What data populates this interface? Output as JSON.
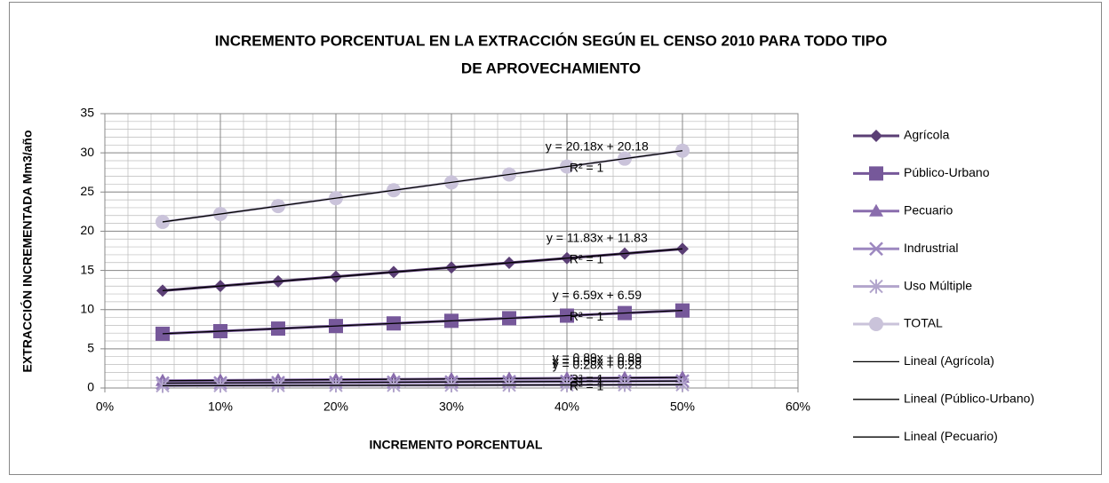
{
  "chart_data": {
    "type": "line",
    "title": [
      "INCREMENTO PORCENTUAL EN LA EXTRACCIÓN SEGÚN EL CENSO 2010 PARA TODO TIPO",
      "DE APROVECHAMIENTO"
    ],
    "x_label": "INCREMENTO PORCENTUAL",
    "y_label": "EXTRACCIÓN INCREMENTADA  Mm3/año",
    "x": [
      5,
      10,
      15,
      20,
      25,
      30,
      35,
      40,
      45,
      50
    ],
    "xlim": [
      0,
      60
    ],
    "xticks": [
      {
        "value": 0,
        "label": "0%"
      },
      {
        "value": 10,
        "label": "10%"
      },
      {
        "value": 20,
        "label": "20%"
      },
      {
        "value": 30,
        "label": "30%"
      },
      {
        "value": 40,
        "label": "40%"
      },
      {
        "value": 50,
        "label": "50%"
      },
      {
        "value": 60,
        "label": "60%"
      }
    ],
    "ylim": [
      0,
      35
    ],
    "yticks": [
      0,
      5,
      10,
      15,
      20,
      25,
      30,
      35
    ],
    "grid": true,
    "minor_grid": {
      "x": 2,
      "y": 1
    },
    "legend": "right",
    "series": [
      {
        "name": "Agrícola",
        "color": "#5b3f75",
        "marker": "diamond",
        "values": [
          12.42,
          13.01,
          13.6,
          14.2,
          14.79,
          15.38,
          15.97,
          16.56,
          17.15,
          17.75
        ],
        "trendline": {
          "name": "Lineal (Agrícola)",
          "equation": "y = 11.83x + 11.83",
          "r_squared": "R² = 1"
        }
      },
      {
        "name": "Público-Urbano",
        "color": "#76589a",
        "marker": "square",
        "values": [
          6.92,
          7.25,
          7.58,
          7.91,
          8.24,
          8.57,
          8.9,
          9.23,
          9.56,
          9.89
        ],
        "trendline": {
          "name": "Lineal (Público-Urbano)",
          "equation": "y = 6.59x + 6.59",
          "r_squared": "R² = 1"
        }
      },
      {
        "name": "Pecuario",
        "color": "#8a6dad",
        "marker": "triangle",
        "values": [
          0.93,
          0.98,
          1.02,
          1.07,
          1.11,
          1.16,
          1.2,
          1.25,
          1.29,
          1.34
        ],
        "trendline": {
          "name": "Lineal (Pecuario)",
          "equation": "y = 0.89x + 0.89",
          "r_squared": "R² = 1"
        }
      },
      {
        "name": "Indrustrial",
        "color": "#9d88c0",
        "marker": "x",
        "values": [
          0.62,
          0.65,
          0.68,
          0.71,
          0.74,
          0.77,
          0.8,
          0.83,
          0.86,
          0.89
        ],
        "trendline": {
          "equation": "y = 0.59x + 0.59",
          "r_squared": "R² = 1"
        }
      },
      {
        "name": "Uso Múltiple",
        "color": "#b2a5cc",
        "marker": "star",
        "values": [
          0.29,
          0.31,
          0.32,
          0.34,
          0.35,
          0.36,
          0.38,
          0.39,
          0.41,
          0.42
        ],
        "trendline": {
          "equation": "y = 0.28x + 0.28",
          "r_squared": "R² = 1"
        }
      },
      {
        "name": "TOTAL",
        "color": "#cac3da",
        "marker": "circle",
        "values": [
          21.19,
          22.2,
          23.21,
          24.22,
          25.23,
          26.23,
          27.24,
          28.25,
          29.26,
          30.27
        ],
        "trendline": {
          "equation": "y = 20.18x + 20.18",
          "r_squared": "R² = 1"
        }
      }
    ]
  }
}
